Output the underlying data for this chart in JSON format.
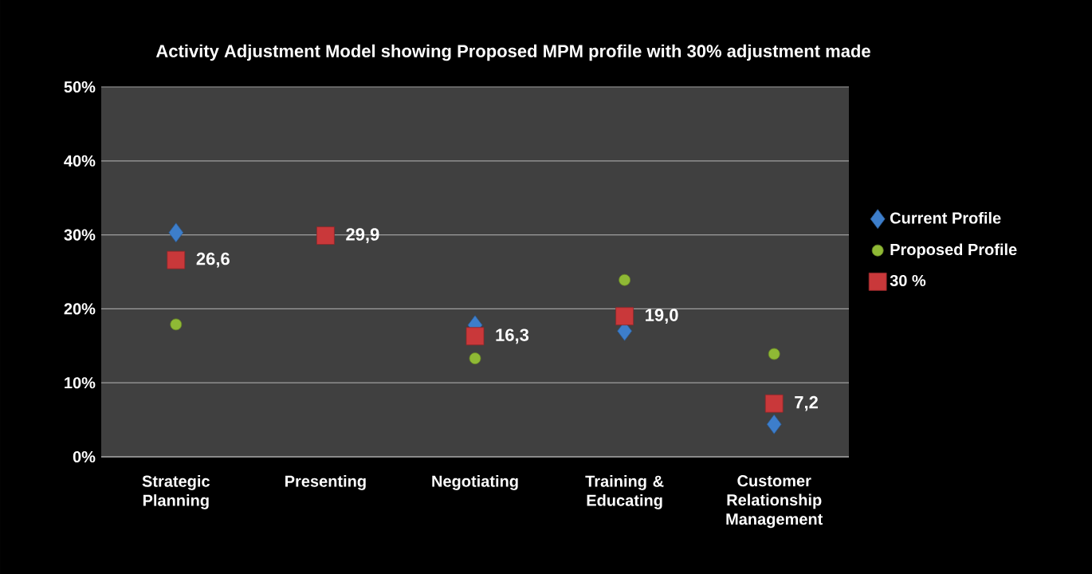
{
  "chart_data": {
    "type": "scatter",
    "title": "Activity Adjustment Model showing Proposed  MPM profile with 30% adjustment made",
    "categories": [
      "Strategic Planning",
      "Presenting",
      "Negotiating",
      "Training & Educating",
      "Customer Relationship Management"
    ],
    "series": [
      {
        "name": "Current Profile",
        "color": "#3d7ecb",
        "marker": "diamond",
        "values": [
          30.3,
          null,
          17.8,
          17.0,
          4.4
        ]
      },
      {
        "name": "Proposed Profile",
        "color": "#8fb935",
        "marker": "circle",
        "values": [
          17.9,
          null,
          13.3,
          23.9,
          13.9
        ]
      },
      {
        "name": "30 %",
        "color": "#c9383a",
        "marker": "square",
        "values": [
          26.6,
          29.9,
          16.3,
          19.0,
          7.2
        ],
        "value_labels": [
          "26,6",
          "29,9",
          "16,3",
          "19,0",
          "7,2"
        ]
      }
    ],
    "ylim": [
      0,
      50
    ],
    "yticks": [
      {
        "value": 0,
        "label": "0%"
      },
      {
        "value": 10,
        "label": "10%"
      },
      {
        "value": 20,
        "label": "20%"
      },
      {
        "value": 30,
        "label": "30%"
      },
      {
        "value": 40,
        "label": "40%"
      },
      {
        "value": 50,
        "label": "50%"
      }
    ],
    "grid": "y",
    "legend": "right"
  }
}
